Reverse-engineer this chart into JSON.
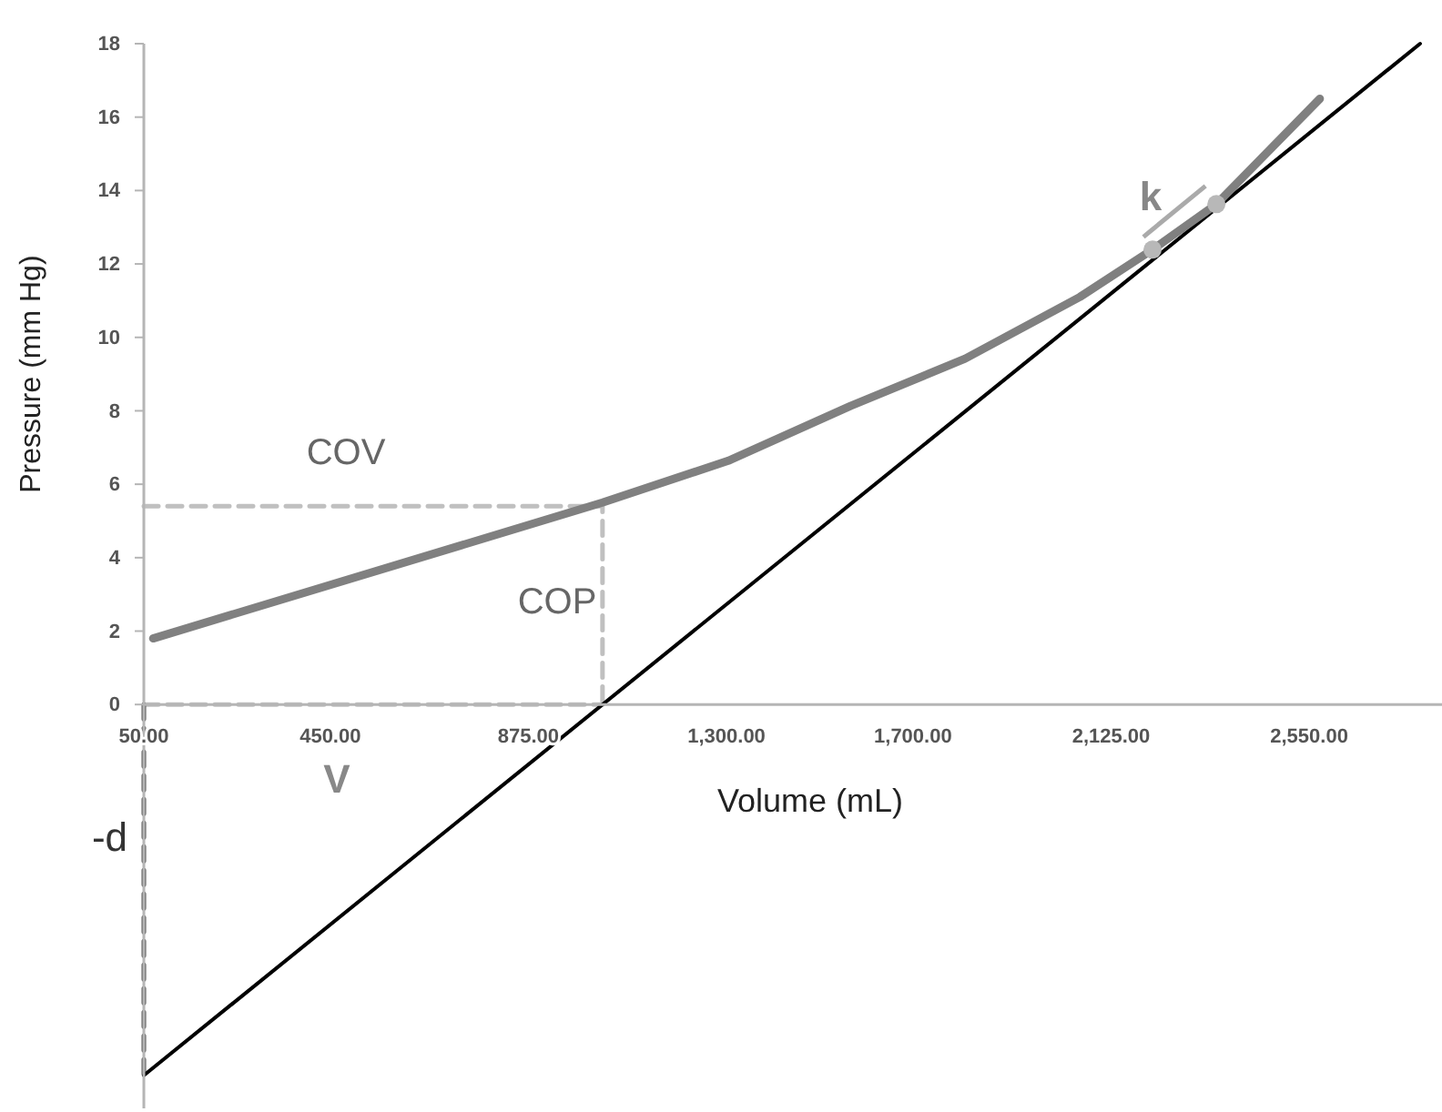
{
  "chart_data": {
    "type": "line",
    "xlabel": "Volume (mL)",
    "ylabel": "Pressure (mm Hg)",
    "xlim": [
      50,
      2835
    ],
    "ylim": [
      -11,
      18
    ],
    "xticks": [
      {
        "value": 50,
        "label": "50.00"
      },
      {
        "value": 450,
        "label": "450.00"
      },
      {
        "value": 875,
        "label": "875.00"
      },
      {
        "value": 1300,
        "label": "1,300.00"
      },
      {
        "value": 1700,
        "label": "1,700.00"
      },
      {
        "value": 2125,
        "label": "2,125.00"
      },
      {
        "value": 2550,
        "label": "2,550.00"
      }
    ],
    "yticks": [
      0,
      2,
      4,
      6,
      8,
      10,
      12,
      14,
      16,
      18
    ],
    "series": [
      {
        "color": "#c0c0c0",
        "line_style": "dashed",
        "x": [
          50,
          1034,
          1034
        ],
        "values": [
          5.4,
          5.4,
          0
        ]
      },
      {
        "color": "#c0c0c0",
        "line_style": "dashed",
        "x": [
          50,
          1034
        ],
        "values": [
          0,
          0
        ]
      },
      {
        "color": "#555555",
        "line_style": "dashed",
        "x": [
          50,
          50
        ],
        "values": [
          0,
          -10.1
        ]
      },
      {
        "color": "#000000",
        "line_style": "solid",
        "x": [
          50,
          2788
        ],
        "values": [
          -10.1,
          18
        ]
      },
      {
        "color": "#808080",
        "line_style": "solid",
        "x": [
          70,
          1034,
          1304,
          1566,
          1812,
          2058,
          2214,
          2351,
          2573
        ],
        "values": [
          1.8,
          5.5,
          6.64,
          8.13,
          9.42,
          11.1,
          12.39,
          13.63,
          16.5
        ]
      },
      {
        "type": "scatter",
        "color": "#b8b8b8",
        "marker": "circle",
        "x": [
          2214,
          2351
        ],
        "values": [
          12.39,
          13.63
        ]
      }
    ],
    "annotations": [
      "COV",
      "COP",
      "V",
      "-d",
      "k"
    ]
  }
}
